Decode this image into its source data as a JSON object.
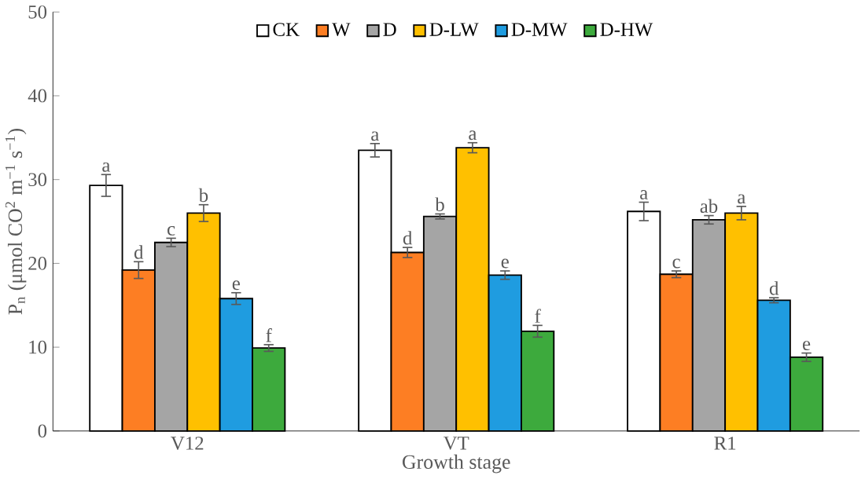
{
  "chart_data": {
    "type": "bar",
    "xlabel": "Growth stage",
    "ylabel": "P$_{n}$ (μmol CO$^{2}$ m$^{−1}$ s$^{−1}$)",
    "categories": [
      "V12",
      "VT",
      "R1"
    ],
    "series": [
      {
        "name": "CK",
        "color": "#ffffff",
        "values": [
          29.3,
          33.5,
          26.2
        ],
        "errors": [
          1.3,
          0.8,
          1.1
        ],
        "value_labels": [
          "a",
          "a",
          "a"
        ]
      },
      {
        "name": "W",
        "color": "#fd7e23",
        "values": [
          19.2,
          21.3,
          18.7
        ],
        "errors": [
          1.0,
          0.6,
          0.4
        ],
        "value_labels": [
          "d",
          "d",
          "c"
        ]
      },
      {
        "name": "D",
        "color": "#a5a5a5",
        "values": [
          22.5,
          25.6,
          25.2
        ],
        "errors": [
          0.5,
          0.3,
          0.5
        ],
        "value_labels": [
          "c",
          "b",
          "ab"
        ]
      },
      {
        "name": "D-LW",
        "color": "#ffc000",
        "values": [
          26.0,
          33.8,
          26.0
        ],
        "errors": [
          1.0,
          0.6,
          0.8
        ],
        "value_labels": [
          "b",
          "a",
          "a"
        ]
      },
      {
        "name": "D-MW",
        "color": "#1f9ce0",
        "values": [
          15.8,
          18.6,
          15.6
        ],
        "errors": [
          0.7,
          0.5,
          0.3
        ],
        "value_labels": [
          "e",
          "e",
          "d"
        ]
      },
      {
        "name": "D-HW",
        "color": "#3daa3d",
        "values": [
          9.9,
          11.9,
          8.8
        ],
        "errors": [
          0.4,
          0.7,
          0.5
        ],
        "value_labels": [
          "f",
          "f",
          "e"
        ]
      }
    ],
    "ylim": [
      0,
      50
    ],
    "yticks": [
      0,
      10,
      20,
      30,
      40,
      50
    ],
    "grid": false,
    "legend": "top"
  }
}
